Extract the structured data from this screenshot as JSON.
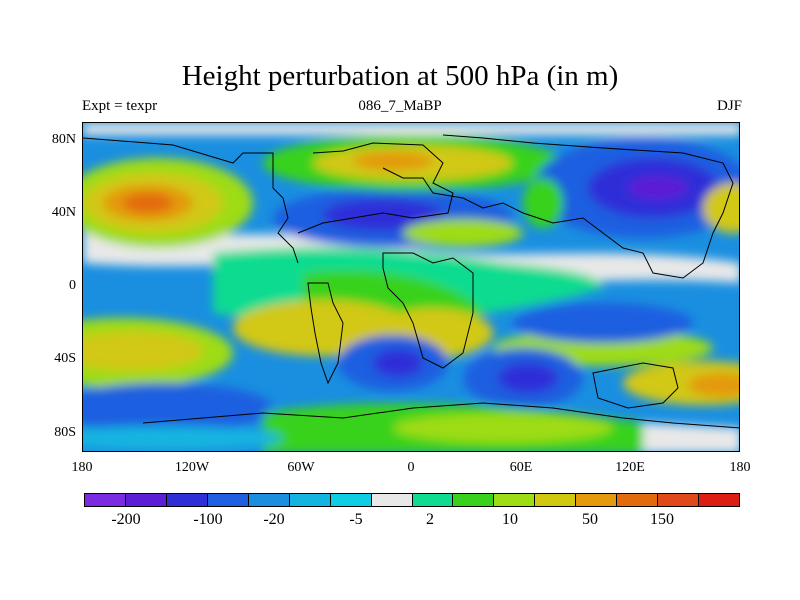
{
  "title": "Height perturbation at 500 hPa (in m)",
  "subtitle_left": "Expt = texpr",
  "subtitle_center": "086_7_MaBP",
  "subtitle_right": "DJF",
  "map": {
    "projection": "cylindrical-equidistant",
    "lon_range": [
      -180,
      180
    ],
    "lat_range": [
      -90,
      90
    ],
    "lat_ticks": [
      "80N",
      "40N",
      "0",
      "40S",
      "80S"
    ],
    "lon_ticks": [
      "180",
      "120W",
      "60W",
      "0",
      "60E",
      "120E",
      "180"
    ]
  },
  "colorbar": {
    "colors": [
      "#7b2be0",
      "#5c1fd6",
      "#2f2fd8",
      "#1f5fe0",
      "#1a8fe0",
      "#14b4e0",
      "#10cde6",
      "#e8e8e8",
      "#10dc90",
      "#38d21c",
      "#9edc14",
      "#d2c812",
      "#e39a0c",
      "#e36a0a",
      "#e04a1a",
      "#dc1e14"
    ],
    "labels": [
      "-200",
      "-100",
      "-20",
      "-5",
      "2",
      "10",
      "50",
      "150"
    ]
  }
}
